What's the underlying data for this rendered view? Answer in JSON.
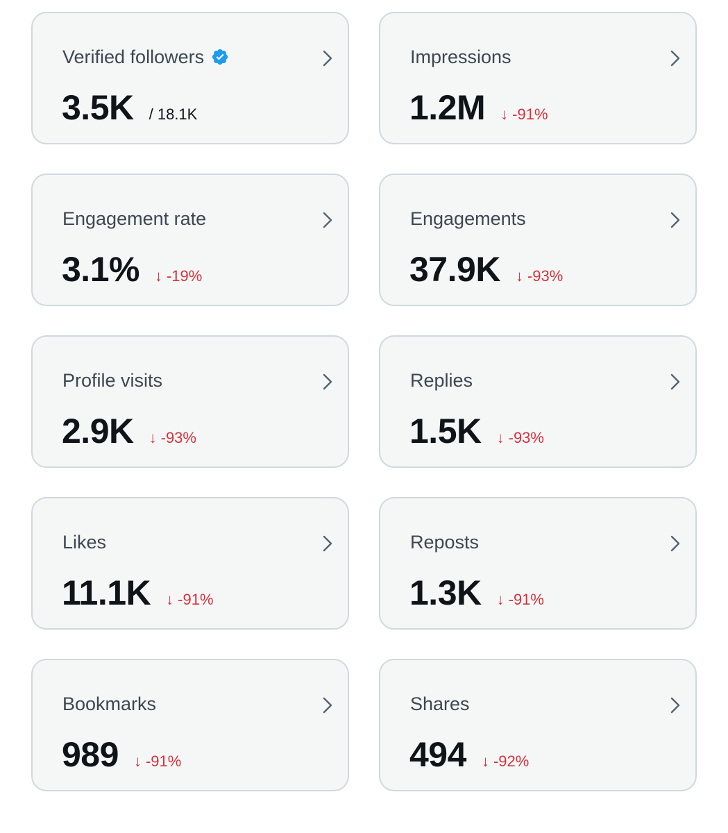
{
  "colors": {
    "card_background": "#f5f7f7",
    "card_border": "#cfd9de",
    "label": "#3d4751",
    "value": "#0f1419",
    "negative_change": "#d9303b",
    "verified_badge": "#1d9bf0"
  },
  "icons": {
    "chevron": "chevron-right-icon",
    "verified": "verified-badge-icon",
    "down_arrow": "arrow-down-icon"
  },
  "cards": [
    {
      "label": "Verified followers",
      "value": "3.5K",
      "total": "/ 18.1K",
      "change": null,
      "verified": true
    },
    {
      "label": "Impressions",
      "value": "1.2M",
      "total": null,
      "change": "-91%",
      "verified": false
    },
    {
      "label": "Engagement rate",
      "value": "3.1%",
      "total": null,
      "change": "-19%",
      "verified": false
    },
    {
      "label": "Engagements",
      "value": "37.9K",
      "total": null,
      "change": "-93%",
      "verified": false
    },
    {
      "label": "Profile visits",
      "value": "2.9K",
      "total": null,
      "change": "-93%",
      "verified": false
    },
    {
      "label": "Replies",
      "value": "1.5K",
      "total": null,
      "change": "-93%",
      "verified": false
    },
    {
      "label": "Likes",
      "value": "11.1K",
      "total": null,
      "change": "-91%",
      "verified": false
    },
    {
      "label": "Reposts",
      "value": "1.3K",
      "total": null,
      "change": "-91%",
      "verified": false
    },
    {
      "label": "Bookmarks",
      "value": "989",
      "total": null,
      "change": "-91%",
      "verified": false
    },
    {
      "label": "Shares",
      "value": "494",
      "total": null,
      "change": "-92%",
      "verified": false
    }
  ]
}
